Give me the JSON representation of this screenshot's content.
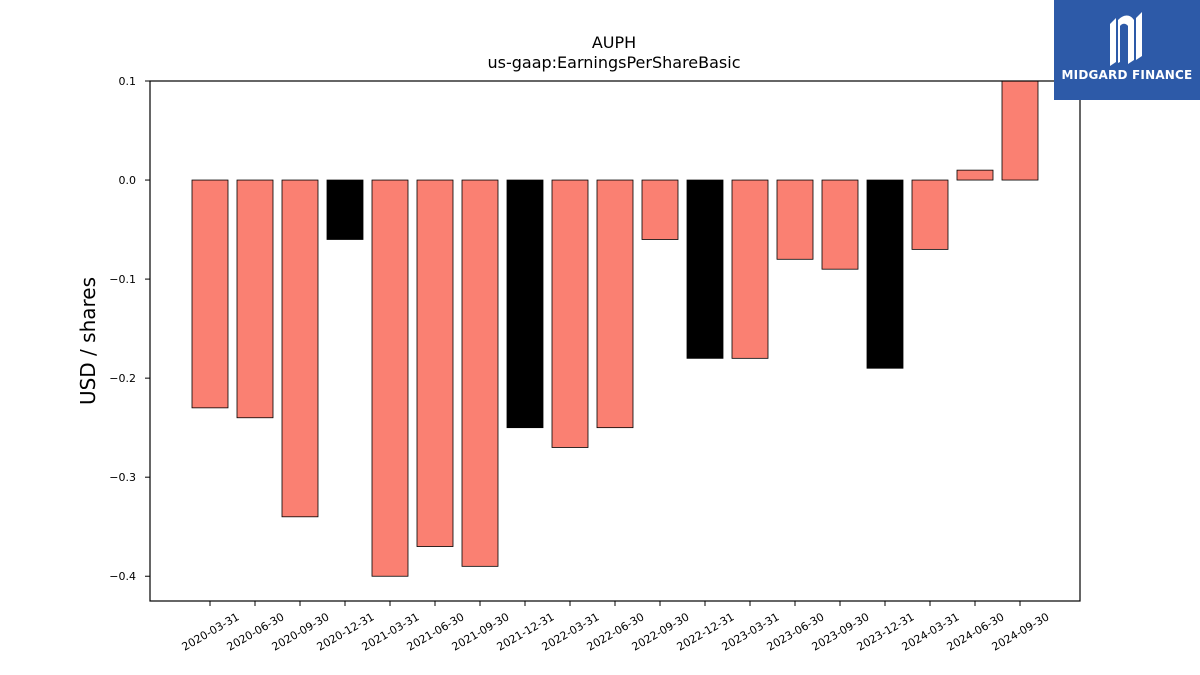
{
  "chart_data": {
    "type": "bar",
    "title": "AUPH",
    "subtitle": "us-gaap:EarningsPerShareBasic",
    "ylabel": "USD / shares",
    "xlabel": "",
    "ylim": [
      -0.425,
      0.1
    ],
    "yticks": [
      0.1,
      0.0,
      -0.1,
      -0.2,
      -0.3,
      -0.4
    ],
    "ytick_labels": [
      "0.1",
      "0.0",
      "−0.1",
      "−0.2",
      "−0.3",
      "−0.4"
    ],
    "categories": [
      "2020-03-31",
      "2020-06-30",
      "2020-09-30",
      "2020-12-31",
      "2021-03-31",
      "2021-06-30",
      "2021-09-30",
      "2021-12-31",
      "2022-03-31",
      "2022-06-30",
      "2022-09-30",
      "2022-12-31",
      "2023-03-31",
      "2023-06-30",
      "2023-09-30",
      "2023-12-31",
      "2024-03-31",
      "2024-06-30",
      "2024-09-30"
    ],
    "values": [
      -0.23,
      -0.24,
      -0.34,
      -0.06,
      -0.4,
      -0.37,
      -0.39,
      -0.25,
      -0.27,
      -0.25,
      -0.06,
      -0.18,
      -0.18,
      -0.08,
      -0.09,
      -0.19,
      -0.07,
      0.01,
      0.1
    ],
    "bar_colors": [
      "#fa8072",
      "#fa8072",
      "#fa8072",
      "#000000",
      "#fa8072",
      "#fa8072",
      "#fa8072",
      "#000000",
      "#fa8072",
      "#fa8072",
      "#fa8072",
      "#000000",
      "#fa8072",
      "#fa8072",
      "#fa8072",
      "#000000",
      "#fa8072",
      "#fa8072",
      "#fa8072"
    ],
    "grid": false,
    "legend": "none"
  },
  "logo": {
    "text": "MIDGARD FINANCE",
    "background": "#2d5aa8"
  }
}
